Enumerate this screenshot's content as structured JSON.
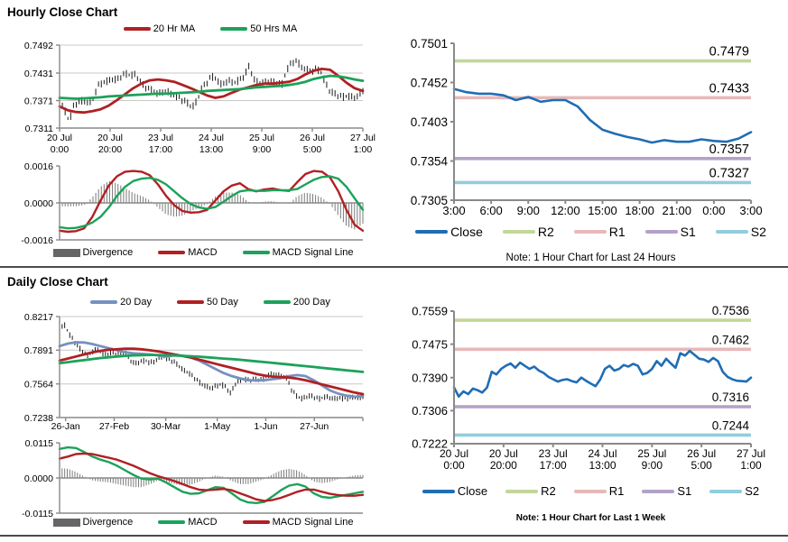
{
  "page": {
    "hourly": {
      "title": "Hourly Close Chart",
      "note": "Note: 1 Hour Chart for Last 24 Hours"
    },
    "daily": {
      "title": "Daily Close Chart",
      "note": "Note: 1 Hour Chart for Last 1 Week"
    }
  },
  "colors": {
    "close": "#1F6DB5",
    "ma_red": "#B02023",
    "ma_green": "#1CA25A",
    "ma_steelblue": "#7591BE",
    "r2": "#C3D69B",
    "r1": "#E6B9B8",
    "s1": "#B3A2C7",
    "s2": "#92CDDC",
    "divergence": "#666666",
    "bars": "#1A1A1A",
    "grid": "#C8C8C8",
    "axis": "#8A8A8A"
  },
  "chart_data": [
    {
      "id": "hourly_price",
      "type": "ohlc",
      "title": "Hourly Close Chart",
      "ylim": [
        0.7311,
        0.7492
      ],
      "yticks": [
        0.7492,
        0.7431,
        0.7371,
        0.7311
      ],
      "ylabels": [
        "0.7492",
        "0.7431",
        "0.7371",
        "0.7311"
      ],
      "xlabels": [
        [
          "20 Jul",
          "0:00"
        ],
        [
          "20 Jul",
          "20:00"
        ],
        [
          "23 Jul",
          "17:00"
        ],
        [
          "24 Jul",
          "13:00"
        ],
        [
          "25 Jul",
          "9:00"
        ],
        [
          "26 Jul",
          "5:00"
        ],
        [
          "27 Jul",
          "1:00"
        ]
      ],
      "bars": {
        "closes": [
          0.7368,
          0.7352,
          0.7326,
          0.736,
          0.7368,
          0.7371,
          0.7366,
          0.7373,
          0.7402,
          0.741,
          0.7413,
          0.7418,
          0.7416,
          0.7424,
          0.743,
          0.7426,
          0.7428,
          0.7412,
          0.74,
          0.7396,
          0.739,
          0.7386,
          0.7391,
          0.7389,
          0.7383,
          0.7379,
          0.7371,
          0.7366,
          0.7356,
          0.7371,
          0.7398,
          0.7409,
          0.7424,
          0.7419,
          0.7406,
          0.7411,
          0.7414,
          0.7409,
          0.7417,
          0.7424,
          0.7448,
          0.7416,
          0.7411,
          0.7409,
          0.7414,
          0.7411,
          0.7409,
          0.7407,
          0.744,
          0.7453,
          0.7458,
          0.7444,
          0.7439,
          0.7434,
          0.7439,
          0.7437,
          0.7412,
          0.7392,
          0.7386,
          0.7381,
          0.7379,
          0.7381,
          0.7377,
          0.7381,
          0.7393
        ],
        "range": 0.0018,
        "count": 110
      },
      "series": [
        {
          "name": "20 Hr MA",
          "color": "ma_red",
          "values": [
            0.7358,
            0.735,
            0.7346,
            0.7345,
            0.7348,
            0.7352,
            0.736,
            0.7372,
            0.7385,
            0.7398,
            0.7408,
            0.7415,
            0.7417,
            0.7415,
            0.7412,
            0.7405,
            0.7398,
            0.739,
            0.7382,
            0.7377,
            0.738,
            0.7388,
            0.7395,
            0.74,
            0.7405,
            0.7408,
            0.7408,
            0.741,
            0.7412,
            0.7418,
            0.7428,
            0.7436,
            0.744,
            0.7438,
            0.7425,
            0.741,
            0.7398,
            0.7392
          ]
        },
        {
          "name": "50 Hrs MA",
          "color": "ma_green",
          "values": [
            0.7377,
            0.7376,
            0.7375,
            0.7376,
            0.7377,
            0.7378,
            0.738,
            0.7381,
            0.7382,
            0.7383,
            0.7384,
            0.7385,
            0.7386,
            0.7386,
            0.7387,
            0.7388,
            0.7389,
            0.739,
            0.7392,
            0.7393,
            0.7394,
            0.7395,
            0.7396,
            0.7398,
            0.74,
            0.7401,
            0.7402,
            0.7403,
            0.7405,
            0.7408,
            0.7412,
            0.7418,
            0.7422,
            0.7425,
            0.7424,
            0.7421,
            0.7417,
            0.7414
          ]
        }
      ],
      "legend": [
        {
          "label": "20 Hr MA",
          "color": "ma_red",
          "kind": "line"
        },
        {
          "label": "50 Hrs MA",
          "color": "ma_green",
          "kind": "line"
        }
      ]
    },
    {
      "id": "hourly_macd",
      "type": "macd",
      "ylim": [
        -0.0016,
        0.0016
      ],
      "yticks": [
        0.0016,
        0.0,
        -0.0016
      ],
      "ylabels": [
        "0.0016",
        "0.0000",
        "-0.0016"
      ],
      "bar_count": 110,
      "series": [
        {
          "name": "MACD",
          "color": "ma_red",
          "values": [
            -0.0012,
            -0.00125,
            -0.00122,
            -0.0011,
            -0.0006,
            0.0001,
            0.00075,
            0.00115,
            0.00135,
            0.00138,
            0.00135,
            0.0012,
            0.0008,
            0.0003,
            -0.0001,
            -0.00035,
            -0.00042,
            -0.0004,
            -0.0003,
            0.0001,
            0.0005,
            0.00075,
            0.00085,
            0.0006,
            0.0005,
            0.00058,
            0.00062,
            0.00055,
            0.00052,
            0.0009,
            0.00125,
            0.00138,
            0.00135,
            0.0011,
            0.0005,
            -0.0003,
            -0.00095,
            -0.0012
          ]
        },
        {
          "name": "MACD Signal Line",
          "color": "ma_green",
          "values": [
            -0.00105,
            -0.0011,
            -0.00108,
            -0.001,
            -0.00085,
            -0.0006,
            -0.0002,
            0.0003,
            0.0007,
            0.00095,
            0.00105,
            0.00108,
            0.001,
            0.0008,
            0.0005,
            0.0002,
            -5e-05,
            -0.0002,
            -0.00025,
            -0.00018,
            5e-05,
            0.0003,
            0.0005,
            0.00055,
            0.00052,
            0.00052,
            0.00055,
            0.00055,
            0.00055,
            0.0006,
            0.0008,
            0.001,
            0.00112,
            0.00115,
            0.00105,
            0.0007,
            0.0002,
            -0.0003
          ]
        }
      ],
      "legend": [
        {
          "label": "Divergence",
          "color": "divergence",
          "kind": "box"
        },
        {
          "label": "MACD",
          "color": "ma_red",
          "kind": "line"
        },
        {
          "label": "MACD Signal Line",
          "color": "ma_green",
          "kind": "line"
        }
      ]
    },
    {
      "id": "hourly_sr",
      "type": "sr",
      "ylim": [
        0.7305,
        0.7501
      ],
      "yticks": [
        0.7501,
        0.7452,
        0.7403,
        0.7354,
        0.7305
      ],
      "ylabels": [
        "0.7501",
        "0.7452",
        "0.7403",
        "0.7354",
        "0.7305"
      ],
      "xlabels": [
        "3:00",
        "6:00",
        "9:00",
        "12:00",
        "15:00",
        "18:00",
        "21:00",
        "0:00",
        "3:00"
      ],
      "levels": [
        {
          "name": "R2",
          "value": 0.7479,
          "label": "0.7479",
          "color": "r2"
        },
        {
          "name": "R1",
          "value": 0.7433,
          "label": "0.7433",
          "color": "r1"
        },
        {
          "name": "S1",
          "value": 0.7357,
          "label": "0.7357",
          "color": "s1"
        },
        {
          "name": "S2",
          "value": 0.7327,
          "label": "0.7327",
          "color": "s2"
        }
      ],
      "close": [
        0.7444,
        0.744,
        0.7438,
        0.7438,
        0.7436,
        0.743,
        0.7434,
        0.7428,
        0.743,
        0.743,
        0.7422,
        0.7405,
        0.7393,
        0.7388,
        0.7384,
        0.7381,
        0.7377,
        0.738,
        0.7378,
        0.7378,
        0.7381,
        0.7379,
        0.7378,
        0.7382,
        0.739
      ],
      "legend": [
        {
          "label": "Close",
          "color": "close",
          "kind": "line"
        },
        {
          "label": "R2",
          "color": "r2",
          "kind": "line"
        },
        {
          "label": "R1",
          "color": "r1",
          "kind": "line"
        },
        {
          "label": "S1",
          "color": "s1",
          "kind": "line"
        },
        {
          "label": "S2",
          "color": "s2",
          "kind": "line"
        }
      ]
    },
    {
      "id": "daily_price",
      "type": "ohlc",
      "title": "Daily Close Chart",
      "ylim": [
        0.7238,
        0.8217
      ],
      "yticks": [
        0.8217,
        0.7891,
        0.7564,
        0.7238
      ],
      "ylabels": [
        "0.8217",
        "0.7891",
        "0.7564",
        "0.7238"
      ],
      "xlabels": [
        "26-Jan",
        "27-Feb",
        "30-Mar",
        "1-May",
        "1-Jun",
        "27-Jun"
      ],
      "xpos": [
        0.02,
        0.18,
        0.35,
        0.52,
        0.68,
        0.84
      ],
      "bars": {
        "closes": [
          0.809,
          0.814,
          0.805,
          0.798,
          0.792,
          0.787,
          0.784,
          0.788,
          0.79,
          0.786,
          0.785,
          0.787,
          0.7855,
          0.785,
          0.786,
          0.779,
          0.776,
          0.778,
          0.779,
          0.777,
          0.778,
          0.782,
          0.783,
          0.78,
          0.778,
          0.775,
          0.77,
          0.768,
          0.764,
          0.76,
          0.756,
          0.754,
          0.752,
          0.7545,
          0.7555,
          0.754,
          0.747,
          0.756,
          0.76,
          0.761,
          0.76,
          0.761,
          0.7605,
          0.761,
          0.765,
          0.766,
          0.765,
          0.764,
          0.762,
          0.75,
          0.745,
          0.742,
          0.744,
          0.745,
          0.743,
          0.742,
          0.744,
          0.743,
          0.742,
          0.743,
          0.742,
          0.7425,
          0.744,
          0.743,
          0.7435
        ],
        "range": 0.006,
        "count": 120
      },
      "series": [
        {
          "name": "20 Day",
          "color": "ma_steelblue",
          "values": [
            0.793,
            0.7955,
            0.7968,
            0.7965,
            0.795,
            0.793,
            0.791,
            0.789,
            0.787,
            0.786,
            0.7855,
            0.785,
            0.784,
            0.783,
            0.784,
            0.7838,
            0.782,
            0.779,
            0.775,
            0.771,
            0.767,
            0.764,
            0.7618,
            0.76,
            0.7598,
            0.76,
            0.761,
            0.762,
            0.764,
            0.765,
            0.764,
            0.76,
            0.755,
            0.75,
            0.747,
            0.745,
            0.744,
            0.7445
          ]
        },
        {
          "name": "50 Day",
          "color": "ma_red",
          "values": [
            0.779,
            0.781,
            0.783,
            0.785,
            0.787,
            0.7885,
            0.7895,
            0.79,
            0.7905,
            0.7905,
            0.79,
            0.789,
            0.788,
            0.7865,
            0.785,
            0.7835,
            0.782,
            0.78,
            0.778,
            0.776,
            0.774,
            0.772,
            0.77,
            0.768,
            0.766,
            0.7645,
            0.7635,
            0.763,
            0.7625,
            0.7615,
            0.76,
            0.758,
            0.756,
            0.754,
            0.752,
            0.75,
            0.748,
            0.7465
          ]
        },
        {
          "name": "200 Day",
          "color": "ma_green",
          "values": [
            0.7765,
            0.7775,
            0.7785,
            0.7795,
            0.7805,
            0.7815,
            0.7822,
            0.783,
            0.7836,
            0.784,
            0.7843,
            0.7845,
            0.7845,
            0.7843,
            0.784,
            0.7836,
            0.7832,
            0.7828,
            0.7822,
            0.7816,
            0.781,
            0.7804,
            0.7798,
            0.779,
            0.7783,
            0.7776,
            0.7768,
            0.776,
            0.7752,
            0.7744,
            0.7736,
            0.7728,
            0.772,
            0.7712,
            0.7704,
            0.7696,
            0.7688,
            0.768
          ]
        }
      ],
      "legend": [
        {
          "label": "20 Day",
          "color": "ma_steelblue",
          "kind": "line"
        },
        {
          "label": "50 Day",
          "color": "ma_red",
          "kind": "line"
        },
        {
          "label": "200 Day",
          "color": "ma_green",
          "kind": "line"
        }
      ]
    },
    {
      "id": "daily_macd",
      "type": "macd",
      "ylim": [
        -0.0115,
        0.0115
      ],
      "yticks": [
        0.0115,
        0.0,
        -0.0115
      ],
      "ylabels": [
        "0.0115",
        "0.0000",
        "-0.0115"
      ],
      "bar_count": 120,
      "series": [
        {
          "name": "MACD",
          "color": "ma_green",
          "values": [
            0.0095,
            0.01,
            0.0098,
            0.0085,
            0.007,
            0.006,
            0.0052,
            0.004,
            0.0025,
            0.001,
            -0.0002,
            -0.0005,
            -0.0002,
            -0.0015,
            -0.003,
            -0.0045,
            -0.0052,
            -0.005,
            -0.004,
            -0.003,
            -0.0032,
            -0.005,
            -0.007,
            -0.008,
            -0.0082,
            -0.0078,
            -0.006,
            -0.004,
            -0.0025,
            -0.002,
            -0.0028,
            -0.005,
            -0.0062,
            -0.0065,
            -0.006,
            -0.0055,
            -0.005,
            -0.0045
          ]
        },
        {
          "name": "MACD Signal Line",
          "color": "ma_red",
          "values": [
            0.0063,
            0.007,
            0.0078,
            0.008,
            0.0078,
            0.0072,
            0.0066,
            0.006,
            0.005,
            0.004,
            0.0028,
            0.0016,
            0.0006,
            -0.0002,
            -0.001,
            -0.002,
            -0.003,
            -0.0038,
            -0.004,
            -0.0038,
            -0.0036,
            -0.004,
            -0.005,
            -0.006,
            -0.007,
            -0.0075,
            -0.0072,
            -0.0065,
            -0.0055,
            -0.0045,
            -0.0038,
            -0.0038,
            -0.0045,
            -0.0052,
            -0.0056,
            -0.0058,
            -0.0058,
            -0.0055
          ]
        }
      ],
      "legend": [
        {
          "label": "Divergence",
          "color": "divergence",
          "kind": "box"
        },
        {
          "label": "MACD",
          "color": "ma_green",
          "kind": "line"
        },
        {
          "label": "MACD Signal Line",
          "color": "ma_red",
          "kind": "line"
        }
      ]
    },
    {
      "id": "daily_sr",
      "type": "sr",
      "ylim": [
        0.7222,
        0.7559
      ],
      "yticks": [
        0.7559,
        0.7475,
        0.739,
        0.7306,
        0.7222
      ],
      "ylabels": [
        "0.7559",
        "0.7475",
        "0.7390",
        "0.7306",
        "0.7222"
      ],
      "xlabels": [
        [
          "20 Jul",
          "0:00"
        ],
        [
          "20 Jul",
          "20:00"
        ],
        [
          "23 Jul",
          "17:00"
        ],
        [
          "24 Jul",
          "13:00"
        ],
        [
          "25 Jul",
          "9:00"
        ],
        [
          "26 Jul",
          "5:00"
        ],
        [
          "27 Jul",
          "1:00"
        ]
      ],
      "levels": [
        {
          "name": "R2",
          "value": 0.7536,
          "label": "0.7536",
          "color": "r2"
        },
        {
          "name": "R1",
          "value": 0.7462,
          "label": "0.7462",
          "color": "r1"
        },
        {
          "name": "S1",
          "value": 0.7316,
          "label": "0.7316",
          "color": "s1"
        },
        {
          "name": "S2",
          "value": 0.7244,
          "label": "0.7244",
          "color": "s2"
        }
      ],
      "close": [
        0.7365,
        0.7342,
        0.7355,
        0.7348,
        0.7362,
        0.7358,
        0.7352,
        0.7365,
        0.7405,
        0.7398,
        0.7412,
        0.742,
        0.7426,
        0.7415,
        0.7428,
        0.742,
        0.7412,
        0.7418,
        0.7408,
        0.7402,
        0.7392,
        0.7386,
        0.738,
        0.7384,
        0.7386,
        0.7381,
        0.7378,
        0.739,
        0.7382,
        0.7375,
        0.7368,
        0.7385,
        0.7412,
        0.742,
        0.7408,
        0.7412,
        0.7422,
        0.7418,
        0.7425,
        0.742,
        0.7398,
        0.7402,
        0.7412,
        0.7432,
        0.742,
        0.7438,
        0.7426,
        0.7415,
        0.7452,
        0.7446,
        0.7458,
        0.7448,
        0.7438,
        0.7436,
        0.743,
        0.744,
        0.7432,
        0.7405,
        0.7392,
        0.7386,
        0.7382,
        0.7381,
        0.738,
        0.739
      ],
      "legend": [
        {
          "label": "Close",
          "color": "close",
          "kind": "line"
        },
        {
          "label": "R2",
          "color": "r2",
          "kind": "line"
        },
        {
          "label": "R1",
          "color": "r1",
          "kind": "line"
        },
        {
          "label": "S1",
          "color": "s1",
          "kind": "line"
        },
        {
          "label": "S2",
          "color": "s2",
          "kind": "line"
        }
      ]
    }
  ]
}
